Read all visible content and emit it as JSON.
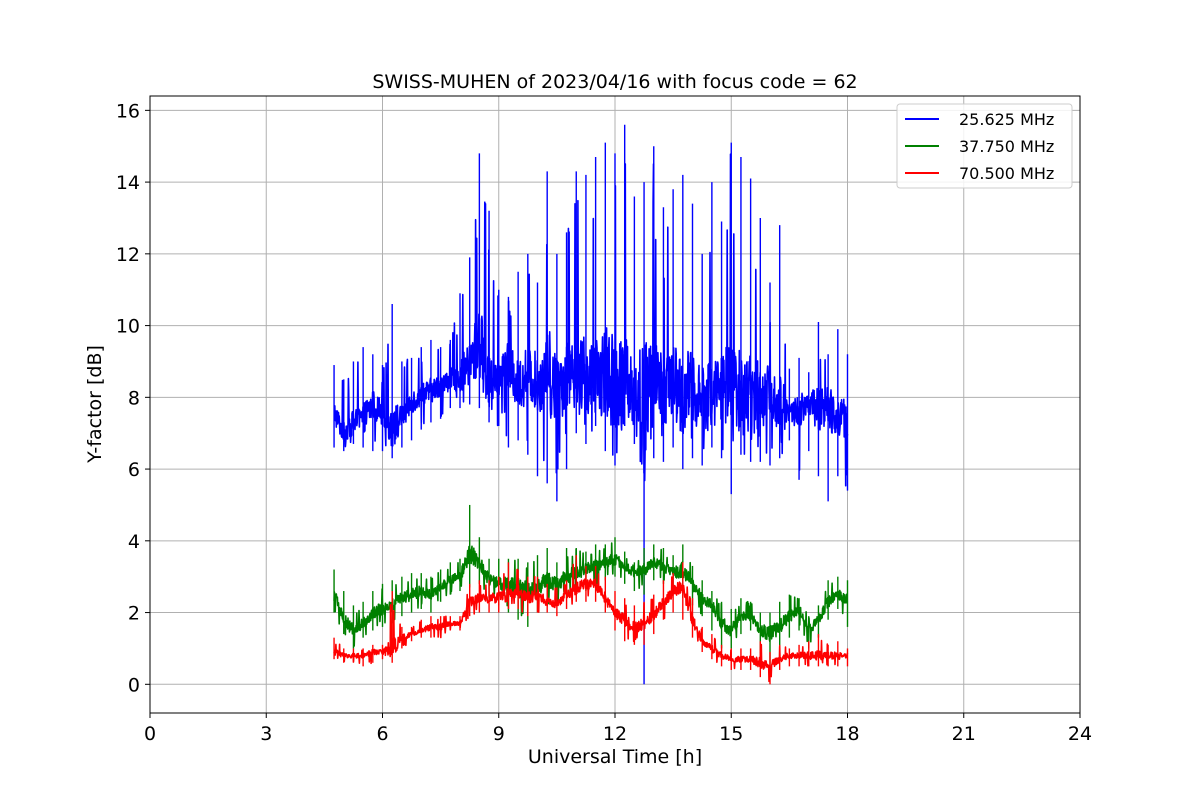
{
  "chart_data": {
    "type": "line",
    "title": "SWISS-MUHEN of 2023/04/16 with focus code = 62",
    "xlabel": "Universal Time [h]",
    "ylabel": "Y-factor [dB]",
    "xlim": [
      0,
      24
    ],
    "ylim": [
      -0.8,
      16.4
    ],
    "xticks": [
      0,
      3,
      6,
      9,
      12,
      15,
      18,
      21,
      24
    ],
    "yticks": [
      0,
      2,
      4,
      6,
      8,
      10,
      12,
      14,
      16
    ],
    "grid": true,
    "legend_position": "top-right",
    "series": [
      {
        "name": "25.625 MHz",
        "color": "#0000ff",
        "x": [
          4.75,
          5.0,
          5.25,
          5.5,
          5.75,
          6.0,
          6.25,
          6.5,
          6.75,
          7.0,
          7.25,
          7.5,
          7.75,
          8.0,
          8.25,
          8.5,
          8.75,
          9.0,
          9.25,
          9.5,
          9.75,
          10.0,
          10.25,
          10.5,
          10.75,
          11.0,
          11.25,
          11.5,
          11.75,
          12.0,
          12.25,
          12.5,
          12.75,
          13.0,
          13.25,
          13.5,
          13.75,
          14.0,
          14.25,
          14.5,
          14.75,
          15.0,
          15.25,
          15.5,
          15.75,
          16.0,
          16.25,
          16.5,
          16.75,
          17.0,
          17.25,
          17.5,
          17.75,
          18.0
        ],
        "y": [
          7.6,
          7.0,
          7.3,
          7.4,
          7.8,
          7.6,
          7.2,
          7.4,
          7.9,
          8.0,
          8.2,
          8.3,
          8.5,
          8.6,
          8.9,
          9.6,
          8.4,
          8.6,
          8.9,
          8.3,
          8.7,
          8.4,
          8.9,
          8.1,
          8.7,
          8.8,
          8.5,
          8.4,
          8.8,
          8.3,
          8.6,
          8.2,
          7.5,
          8.7,
          8.1,
          8.4,
          8.0,
          8.3,
          7.9,
          8.2,
          8.4,
          8.1,
          8.3,
          8.0,
          8.0,
          8.1,
          7.8,
          7.6,
          7.6,
          7.9,
          7.6,
          7.7,
          7.5,
          7.4
        ],
        "upper": [
          8.9,
          8.5,
          9.0,
          9.4,
          9.2,
          8.9,
          10.6,
          9.0,
          9.1,
          9.4,
          9.6,
          9.4,
          9.6,
          10.9,
          11.9,
          14.8,
          13.2,
          11.0,
          10.8,
          11.5,
          12.0,
          11.2,
          14.3,
          12.0,
          12.6,
          14.3,
          14.2,
          14.7,
          15.1,
          14.8,
          15.6,
          13.6,
          14.0,
          15.0,
          13.3,
          13.8,
          14.2,
          13.4,
          12.0,
          14.0,
          12.9,
          15.1,
          14.7,
          14.1,
          13.0,
          11.2,
          12.8,
          8.8,
          9.1,
          8.7,
          10.1,
          9.2,
          9.9,
          9.2
        ],
        "lower": [
          6.6,
          6.5,
          6.7,
          6.6,
          6.5,
          6.5,
          6.3,
          6.6,
          6.8,
          7.1,
          7.3,
          7.4,
          7.7,
          7.7,
          7.8,
          7.7,
          7.3,
          7.2,
          6.6,
          6.8,
          6.4,
          5.8,
          5.6,
          5.1,
          6.0,
          7.0,
          6.7,
          7.2,
          6.5,
          6.1,
          7.2,
          6.7,
          0.0,
          6.3,
          6.2,
          6.6,
          6.0,
          6.3,
          6.1,
          6.6,
          6.3,
          5.3,
          6.4,
          6.2,
          6.2,
          6.1,
          6.3,
          6.8,
          5.7,
          6.5,
          5.8,
          5.1,
          5.8,
          5.4
        ]
      },
      {
        "name": "37.750 MHz",
        "color": "#008000",
        "x": [
          4.75,
          5.0,
          5.25,
          5.5,
          5.75,
          6.0,
          6.25,
          6.5,
          6.75,
          7.0,
          7.25,
          7.5,
          7.75,
          8.0,
          8.25,
          8.5,
          8.75,
          9.0,
          9.25,
          9.5,
          9.75,
          10.0,
          10.25,
          10.5,
          10.75,
          11.0,
          11.25,
          11.5,
          11.75,
          12.0,
          12.25,
          12.5,
          12.75,
          13.0,
          13.25,
          13.5,
          13.75,
          14.0,
          14.25,
          14.5,
          14.75,
          15.0,
          15.25,
          15.5,
          15.75,
          16.0,
          16.25,
          16.5,
          16.75,
          17.0,
          17.25,
          17.5,
          17.75,
          18.0
        ],
        "y": [
          2.5,
          1.8,
          1.5,
          1.7,
          2.0,
          2.1,
          2.2,
          2.4,
          2.5,
          2.6,
          2.5,
          2.7,
          2.9,
          3.0,
          3.6,
          3.4,
          2.9,
          2.8,
          2.8,
          2.7,
          2.6,
          2.7,
          2.9,
          2.8,
          3.0,
          3.1,
          3.2,
          3.3,
          3.4,
          3.5,
          3.3,
          3.1,
          3.2,
          3.4,
          3.3,
          3.1,
          3.2,
          2.8,
          2.4,
          2.2,
          1.7,
          1.5,
          1.9,
          1.9,
          1.5,
          1.4,
          1.6,
          1.9,
          2.1,
          1.5,
          1.8,
          2.3,
          2.5,
          2.4
        ],
        "upper": [
          3.2,
          2.6,
          2.2,
          2.3,
          2.6,
          2.8,
          2.9,
          3.0,
          3.1,
          3.1,
          3.0,
          3.2,
          3.4,
          3.5,
          5.0,
          4.1,
          3.5,
          3.5,
          3.5,
          3.5,
          3.4,
          3.6,
          3.8,
          3.4,
          3.8,
          3.8,
          3.7,
          3.9,
          3.9,
          4.1,
          3.7,
          3.4,
          3.8,
          3.9,
          3.8,
          3.6,
          3.9,
          3.3,
          2.9,
          2.6,
          2.3,
          2.1,
          2.4,
          2.3,
          2.0,
          2.0,
          2.3,
          2.5,
          2.4,
          1.9,
          2.2,
          2.9,
          3.0,
          2.9
        ],
        "lower": [
          2.0,
          1.4,
          1.0,
          1.3,
          1.5,
          1.6,
          1.7,
          1.9,
          2.0,
          2.1,
          2.0,
          2.3,
          2.5,
          2.6,
          2.7,
          2.8,
          2.4,
          2.2,
          2.0,
          1.8,
          1.6,
          2.0,
          2.2,
          2.2,
          2.4,
          2.5,
          2.6,
          2.7,
          2.9,
          3.0,
          2.8,
          2.6,
          2.5,
          2.9,
          2.8,
          2.6,
          2.4,
          2.2,
          1.9,
          1.5,
          1.0,
          1.0,
          1.4,
          1.5,
          0.8,
          0.5,
          1.0,
          1.3,
          1.5,
          1.0,
          1.3,
          1.8,
          2.1,
          1.6
        ]
      },
      {
        "name": "70.500 MHz",
        "color": "#ff0000",
        "x": [
          4.75,
          5.0,
          5.25,
          5.5,
          5.75,
          6.0,
          6.25,
          6.5,
          6.75,
          7.0,
          7.25,
          7.5,
          7.75,
          8.0,
          8.25,
          8.5,
          8.75,
          9.0,
          9.25,
          9.5,
          9.75,
          10.0,
          10.25,
          10.5,
          10.75,
          11.0,
          11.25,
          11.5,
          11.75,
          12.0,
          12.25,
          12.5,
          12.75,
          13.0,
          13.25,
          13.5,
          13.75,
          14.0,
          14.25,
          14.5,
          14.75,
          15.0,
          15.25,
          15.5,
          15.75,
          16.0,
          16.25,
          16.5,
          16.75,
          17.0,
          17.25,
          17.5,
          17.75,
          18.0
        ],
        "y": [
          0.9,
          0.8,
          0.8,
          0.8,
          0.9,
          0.9,
          1.0,
          1.3,
          1.4,
          1.5,
          1.6,
          1.6,
          1.7,
          1.7,
          2.3,
          2.4,
          2.4,
          2.4,
          2.5,
          2.6,
          2.4,
          2.5,
          2.3,
          2.2,
          2.5,
          2.7,
          2.8,
          2.8,
          2.4,
          2.0,
          1.8,
          1.6,
          1.7,
          1.9,
          2.3,
          2.6,
          2.7,
          1.8,
          1.2,
          1.0,
          0.8,
          0.7,
          0.7,
          0.7,
          0.6,
          0.5,
          0.7,
          0.8,
          0.8,
          0.8,
          0.8,
          0.8,
          0.8,
          0.8
        ],
        "upper": [
          1.3,
          1.0,
          1.0,
          1.0,
          1.1,
          1.1,
          2.6,
          1.6,
          1.6,
          1.8,
          1.9,
          1.9,
          1.9,
          1.9,
          2.8,
          2.9,
          2.9,
          3.0,
          3.4,
          3.2,
          3.0,
          3.0,
          2.8,
          2.7,
          2.9,
          3.6,
          3.3,
          3.3,
          3.0,
          2.6,
          2.4,
          2.2,
          2.3,
          2.5,
          2.9,
          3.1,
          3.4,
          2.4,
          1.6,
          1.4,
          1.1,
          1.0,
          1.0,
          1.0,
          1.2,
          0.9,
          1.1,
          1.0,
          1.1,
          1.2,
          1.4,
          1.1,
          1.2,
          1.0
        ],
        "lower": [
          0.7,
          0.6,
          0.6,
          0.5,
          0.6,
          0.7,
          0.6,
          1.0,
          1.2,
          1.3,
          1.3,
          1.3,
          1.5,
          1.5,
          1.9,
          2.0,
          2.0,
          2.0,
          2.1,
          2.1,
          1.9,
          2.0,
          2.0,
          1.9,
          2.1,
          2.3,
          2.3,
          2.3,
          2.0,
          1.5,
          1.2,
          1.1,
          1.1,
          1.4,
          1.8,
          2.0,
          1.8,
          1.3,
          0.9,
          0.7,
          0.5,
          0.4,
          0.4,
          0.4,
          0.2,
          0.0,
          0.4,
          0.5,
          0.5,
          0.5,
          0.5,
          0.5,
          0.5,
          0.5
        ]
      }
    ]
  }
}
